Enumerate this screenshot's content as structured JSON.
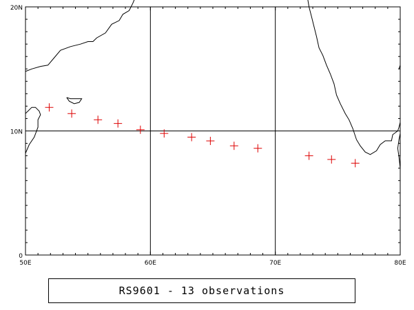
{
  "map": {
    "lon_range": [
      50,
      80
    ],
    "lat_range": [
      0,
      20
    ],
    "x_ticks": [
      {
        "value": 50,
        "label": "50E"
      },
      {
        "value": 60,
        "label": "60E"
      },
      {
        "value": 70,
        "label": "70E"
      },
      {
        "value": 80,
        "label": "80E"
      }
    ],
    "y_ticks": [
      {
        "value": 0,
        "label": "0"
      },
      {
        "value": 10,
        "label": "10N"
      },
      {
        "value": 20,
        "label": "20N"
      }
    ],
    "grid_lines": {
      "lon": [
        60,
        70
      ],
      "lat": [
        10
      ]
    },
    "marker_symbol": "plus",
    "marker_color": "#dd0000",
    "coast_color": "#000000",
    "observations": [
      {
        "lon": 51.9,
        "lat": 11.9
      },
      {
        "lon": 53.7,
        "lat": 11.4
      },
      {
        "lon": 55.8,
        "lat": 10.9
      },
      {
        "lon": 57.4,
        "lat": 10.6
      },
      {
        "lon": 59.2,
        "lat": 10.1
      },
      {
        "lon": 61.1,
        "lat": 9.8
      },
      {
        "lon": 63.3,
        "lat": 9.5
      },
      {
        "lon": 64.8,
        "lat": 9.2
      },
      {
        "lon": 66.7,
        "lat": 8.8
      },
      {
        "lon": 68.6,
        "lat": 8.6
      },
      {
        "lon": 72.7,
        "lat": 8.0
      },
      {
        "lon": 74.5,
        "lat": 7.7
      },
      {
        "lon": 76.4,
        "lat": 7.4
      }
    ]
  },
  "caption": {
    "text": "RS9601 - 13 observations"
  }
}
